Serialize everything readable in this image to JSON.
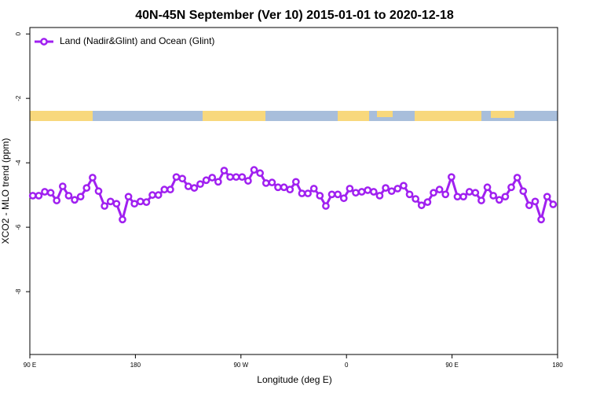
{
  "chart_data": {
    "type": "line",
    "title": "40N-45N September (Ver 10)   2015-01-01 to 2020-12-18",
    "x_label": "Longitude (deg E)",
    "y_label": "XCO2 - MLO trend (ppm)",
    "xlim": [
      90,
      540
    ],
    "xticks": [
      {
        "value": 90,
        "label": "90 E"
      },
      180,
      {
        "value": 270,
        "label": "90 W"
      },
      {
        "value": 360,
        "label": "0"
      },
      {
        "value": 450,
        "label": "90 E"
      },
      {
        "value": 540,
        "label": "180"
      }
    ],
    "ylim": [
      -9.95,
      0.2
    ],
    "yticks": [
      0,
      -2,
      -4,
      -6,
      -8
    ],
    "legend": "top-left",
    "x": [
      92.5,
      97.6,
      102.7,
      107.8,
      112.9,
      118.0,
      123.1,
      128.2,
      133.3,
      138.4,
      143.5,
      148.6,
      153.7,
      158.8,
      163.9,
      169.0,
      174.1,
      179.2,
      184.3,
      189.4,
      194.5,
      199.6,
      204.7,
      209.8,
      214.9,
      220.0,
      225.1,
      230.2,
      235.3,
      240.4,
      245.5,
      250.6,
      255.7,
      260.8,
      265.9,
      271.0,
      276.1,
      281.2,
      286.3,
      291.4,
      296.5,
      301.6,
      306.7,
      311.8,
      316.9,
      322.0,
      327.1,
      332.2,
      337.3,
      342.4,
      347.5,
      352.6,
      357.7,
      362.8,
      367.9,
      373.0,
      378.1,
      383.2,
      388.3,
      393.4,
      398.5,
      403.6,
      408.7,
      413.8,
      418.9,
      424.0,
      429.1,
      434.2,
      439.3,
      444.4,
      449.5,
      454.6,
      459.7,
      464.8,
      469.9,
      475.0,
      480.1,
      485.2,
      490.3,
      495.4,
      500.5,
      505.6,
      510.7,
      515.8,
      520.9,
      526.0,
      531.1,
      536.2
    ],
    "series": [
      {
        "name": "Land (Nadir&Glint) and Ocean (Glint)",
        "color": "#a020f0",
        "values": [
          -5.02,
          -5.02,
          -4.9,
          -4.93,
          -5.17,
          -4.73,
          -5.02,
          -5.15,
          -5.05,
          -4.78,
          -4.46,
          -4.88,
          -5.34,
          -5.2,
          -5.27,
          -5.76,
          -5.05,
          -5.27,
          -5.2,
          -5.22,
          -5.0,
          -5.0,
          -4.83,
          -4.83,
          -4.44,
          -4.49,
          -4.73,
          -4.78,
          -4.66,
          -4.54,
          -4.46,
          -4.59,
          -4.24,
          -4.44,
          -4.44,
          -4.44,
          -4.56,
          -4.22,
          -4.32,
          -4.63,
          -4.61,
          -4.76,
          -4.76,
          -4.83,
          -4.59,
          -4.95,
          -4.95,
          -4.8,
          -5.02,
          -5.34,
          -4.98,
          -4.98,
          -5.1,
          -4.8,
          -4.93,
          -4.9,
          -4.85,
          -4.9,
          -5.02,
          -4.78,
          -4.88,
          -4.8,
          -4.71,
          -4.98,
          -5.12,
          -5.32,
          -5.22,
          -4.93,
          -4.83,
          -4.98,
          -4.44,
          -5.05,
          -5.05,
          -4.9,
          -4.93,
          -5.17,
          -4.76,
          -5.02,
          -5.15,
          -5.05,
          -4.76,
          -4.46,
          -4.88,
          -5.32,
          -5.2,
          -5.76,
          -5.05,
          -5.29
        ]
      }
    ]
  }
}
